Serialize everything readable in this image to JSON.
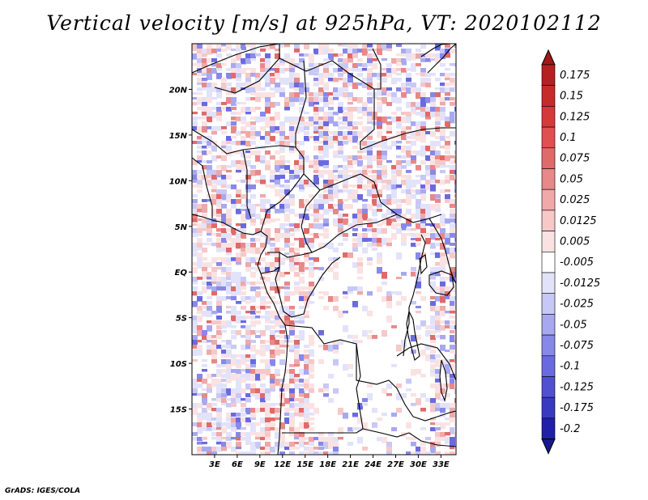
{
  "title": "Vertical velocity [m/s] at 925hPa, VT: 2020102112",
  "credit": "GrADS: IGES/COLA",
  "map": {
    "lon_range": [
      0,
      35
    ],
    "lat_range": [
      -20,
      25
    ],
    "lat_ticks": [
      {
        "value": 20,
        "label": "20N"
      },
      {
        "value": 15,
        "label": "15N"
      },
      {
        "value": 10,
        "label": "10N"
      },
      {
        "value": 5,
        "label": "5N"
      },
      {
        "value": 0,
        "label": "EQ"
      },
      {
        "value": -5,
        "label": "5S"
      },
      {
        "value": -10,
        "label": "10S"
      },
      {
        "value": -15,
        "label": "15S"
      }
    ],
    "lon_ticks": [
      {
        "value": 3,
        "label": "3E"
      },
      {
        "value": 6,
        "label": "6E"
      },
      {
        "value": 9,
        "label": "9E"
      },
      {
        "value": 12,
        "label": "12E"
      },
      {
        "value": 15,
        "label": "15E"
      },
      {
        "value": 18,
        "label": "18E"
      },
      {
        "value": 21,
        "label": "21E"
      },
      {
        "value": 24,
        "label": "24E"
      },
      {
        "value": 27,
        "label": "27E"
      },
      {
        "value": 30,
        "label": "30E"
      },
      {
        "value": 33,
        "label": "33E"
      }
    ]
  },
  "colorbar": {
    "levels": [
      {
        "label": "0.175",
        "color": "#b52020"
      },
      {
        "label": "0.15",
        "color": "#c52b2b"
      },
      {
        "label": "0.125",
        "color": "#d43a3a"
      },
      {
        "label": "0.1",
        "color": "#e05050"
      },
      {
        "label": "0.075",
        "color": "#e06a6a"
      },
      {
        "label": "0.05",
        "color": "#e88888"
      },
      {
        "label": "0.025",
        "color": "#f0a8a8"
      },
      {
        "label": "0.0125",
        "color": "#f6c8c8"
      },
      {
        "label": "0.005",
        "color": "#fbe2e2"
      },
      {
        "label": "-0.005",
        "color": "#ffffff"
      },
      {
        "label": "-0.0125",
        "color": "#e2e2fb"
      },
      {
        "label": "-0.025",
        "color": "#c8c8f6"
      },
      {
        "label": "-0.05",
        "color": "#a8a8f0"
      },
      {
        "label": "-0.075",
        "color": "#8888e8"
      },
      {
        "label": "-0.1",
        "color": "#6a6ae0"
      },
      {
        "label": "-0.125",
        "color": "#5050d0"
      },
      {
        "label": "-0.175",
        "color": "#3a3ac0"
      },
      {
        "label": "-0.2",
        "color": "#2020a8"
      }
    ],
    "top_triangle_color": "#a01818",
    "bottom_triangle_color": "#18188f"
  }
}
